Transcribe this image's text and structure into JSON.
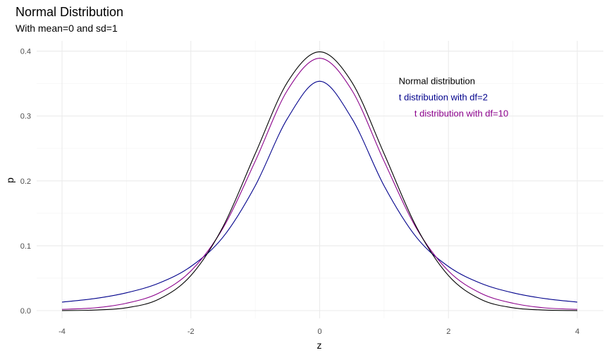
{
  "chart_data": {
    "type": "line",
    "title": "Normal Distribution",
    "subtitle": "With mean=0 and sd=1",
    "xlabel": "z",
    "ylabel": "p",
    "xlim": [
      -4,
      4
    ],
    "ylim": [
      0,
      0.4
    ],
    "x_ticks": [
      -4,
      -2,
      0,
      2,
      4
    ],
    "x_tick_labels": [
      "-4",
      "-2",
      "0",
      "2",
      "4"
    ],
    "y_ticks": [
      0.0,
      0.1,
      0.2,
      0.3,
      0.4
    ],
    "y_tick_labels": [
      "0.0",
      "0.1",
      "0.2",
      "0.3",
      "0.4"
    ],
    "grid": true,
    "x": [
      -4,
      -3.5,
      -3,
      -2.5,
      -2,
      -1.5,
      -1,
      -0.5,
      0,
      0.5,
      1,
      1.5,
      2,
      2.5,
      3,
      3.5,
      4
    ],
    "series": [
      {
        "name": "Normal distribution",
        "color": "#000000",
        "values": [
          0.0001,
          0.0009,
          0.0044,
          0.0175,
          0.054,
          0.1295,
          0.242,
          0.3521,
          0.3989,
          0.3521,
          0.242,
          0.1295,
          0.054,
          0.0175,
          0.0044,
          0.0009,
          0.0001
        ]
      },
      {
        "name": "t distribution with df=2",
        "color": "#00008b",
        "values": [
          0.0131,
          0.0185,
          0.0275,
          0.0422,
          0.068,
          0.1134,
          0.1925,
          0.2962,
          0.3536,
          0.2962,
          0.1925,
          0.1134,
          0.068,
          0.0422,
          0.0275,
          0.0185,
          0.0131
        ]
      },
      {
        "name": "t distribution with df=10",
        "color": "#8b008b",
        "values": [
          0.002,
          0.0042,
          0.0114,
          0.0269,
          0.0611,
          0.1274,
          0.2304,
          0.3397,
          0.3891,
          0.3397,
          0.2304,
          0.1274,
          0.0611,
          0.0269,
          0.0114,
          0.0042,
          0.002
        ]
      }
    ],
    "annotations": [
      {
        "text": "Normal distribution",
        "color": "#000000",
        "x": 1.82,
        "y": 0.349
      },
      {
        "text": "t distribution with df=2",
        "color": "#00008b",
        "x": 1.92,
        "y": 0.324
      },
      {
        "text": "t distribution with df=10",
        "color": "#8b008b",
        "x": 2.2,
        "y": 0.299
      }
    ]
  }
}
